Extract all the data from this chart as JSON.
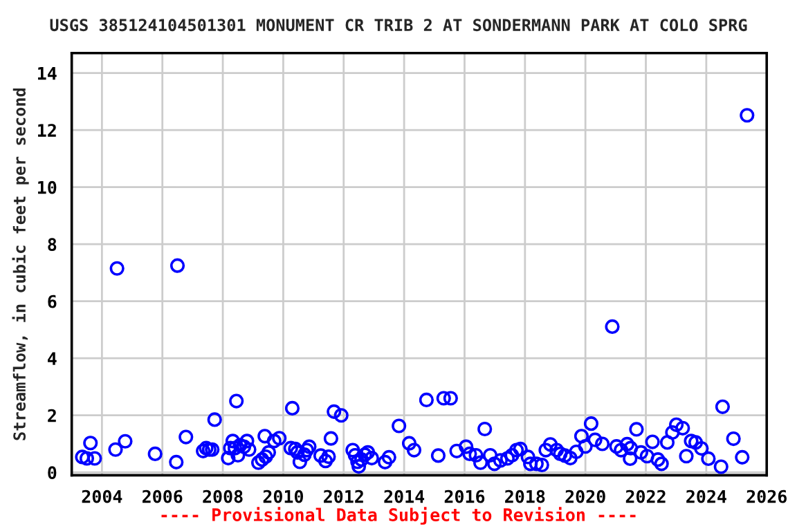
{
  "chart_data": {
    "type": "scatter",
    "title": "USGS 385124104501301 MONUMENT CR TRIB 2 AT SONDERMANN PARK AT COLO SPRG",
    "ylabel": "Streamflow, in cubic feet per second",
    "annotations": [
      "---- Provisional Data Subject to Revision ----"
    ],
    "xlim": [
      2003,
      2026
    ],
    "xticks": [
      2004,
      2006,
      2008,
      2010,
      2012,
      2014,
      2016,
      2018,
      2020,
      2022,
      2024,
      2026
    ],
    "ylim": [
      -0.1,
      14.7
    ],
    "yticks": [
      0,
      2,
      4,
      6,
      8,
      10,
      12,
      14
    ],
    "grid": true,
    "marker": "circle",
    "series": [
      {
        "color": "#0000ff",
        "x": [
          2003.35,
          2003.5,
          2003.62,
          2003.76,
          2004.45,
          2004.5,
          2004.77,
          2005.76,
          2006.46,
          2006.5,
          2006.78,
          2007.35,
          2007.45,
          2007.55,
          2007.65,
          2007.73,
          2008.18,
          2008.25,
          2008.33,
          2008.4,
          2008.45,
          2008.5,
          2008.57,
          2008.7,
          2008.8,
          2008.87,
          2009.18,
          2009.3,
          2009.39,
          2009.42,
          2009.52,
          2009.7,
          2009.87,
          2010.25,
          2010.3,
          2010.4,
          2010.47,
          2010.55,
          2010.7,
          2010.78,
          2010.86,
          2011.24,
          2011.4,
          2011.5,
          2011.58,
          2011.68,
          2011.92,
          2012.3,
          2012.38,
          2012.46,
          2012.5,
          2012.59,
          2012.7,
          2012.8,
          2012.93,
          2013.37,
          2013.5,
          2013.83,
          2014.17,
          2014.33,
          2014.74,
          2015.13,
          2015.31,
          2015.54,
          2015.74,
          2016.05,
          2016.17,
          2016.38,
          2016.53,
          2016.67,
          2016.85,
          2016.99,
          2017.19,
          2017.42,
          2017.57,
          2017.72,
          2017.85,
          2018.1,
          2018.18,
          2018.38,
          2018.56,
          2018.69,
          2018.84,
          2019.05,
          2019.17,
          2019.32,
          2019.5,
          2019.7,
          2019.87,
          2020.0,
          2020.19,
          2020.32,
          2020.56,
          2020.89,
          2021.03,
          2021.18,
          2021.38,
          2021.48,
          2021.5,
          2021.69,
          2021.84,
          2022.04,
          2022.22,
          2022.4,
          2022.52,
          2022.71,
          2022.88,
          2023.01,
          2023.22,
          2023.34,
          2023.5,
          2023.65,
          2023.84,
          2024.07,
          2024.49,
          2024.54,
          2024.9,
          2025.19,
          2025.35
        ],
        "values": [
          0.54,
          0.49,
          1.03,
          0.49,
          0.8,
          7.15,
          1.09,
          0.65,
          0.36,
          7.25,
          1.24,
          0.75,
          0.85,
          0.8,
          0.8,
          1.85,
          0.5,
          0.85,
          1.1,
          0.85,
          2.5,
          0.6,
          0.95,
          0.9,
          1.1,
          0.8,
          0.34,
          0.45,
          1.27,
          0.55,
          0.7,
          1.1,
          1.2,
          0.85,
          2.25,
          0.82,
          0.7,
          0.37,
          0.62,
          0.78,
          0.9,
          0.59,
          0.4,
          0.55,
          1.19,
          2.13,
          2.0,
          0.78,
          0.6,
          0.37,
          0.21,
          0.45,
          0.62,
          0.7,
          0.5,
          0.36,
          0.53,
          1.63,
          1.02,
          0.78,
          2.54,
          0.59,
          2.6,
          2.6,
          0.75,
          0.9,
          0.65,
          0.6,
          0.34,
          1.52,
          0.6,
          0.3,
          0.42,
          0.49,
          0.6,
          0.78,
          0.82,
          0.54,
          0.3,
          0.3,
          0.26,
          0.78,
          0.98,
          0.78,
          0.65,
          0.59,
          0.5,
          0.72,
          1.27,
          0.91,
          1.71,
          1.14,
          1.0,
          5.11,
          0.91,
          0.78,
          0.99,
          0.48,
          0.85,
          1.51,
          0.7,
          0.57,
          1.07,
          0.45,
          0.3,
          1.05,
          1.4,
          1.67,
          1.55,
          0.57,
          1.1,
          1.05,
          0.84,
          0.48,
          0.2,
          2.3,
          1.18,
          0.53,
          12.52
        ]
      }
    ]
  }
}
